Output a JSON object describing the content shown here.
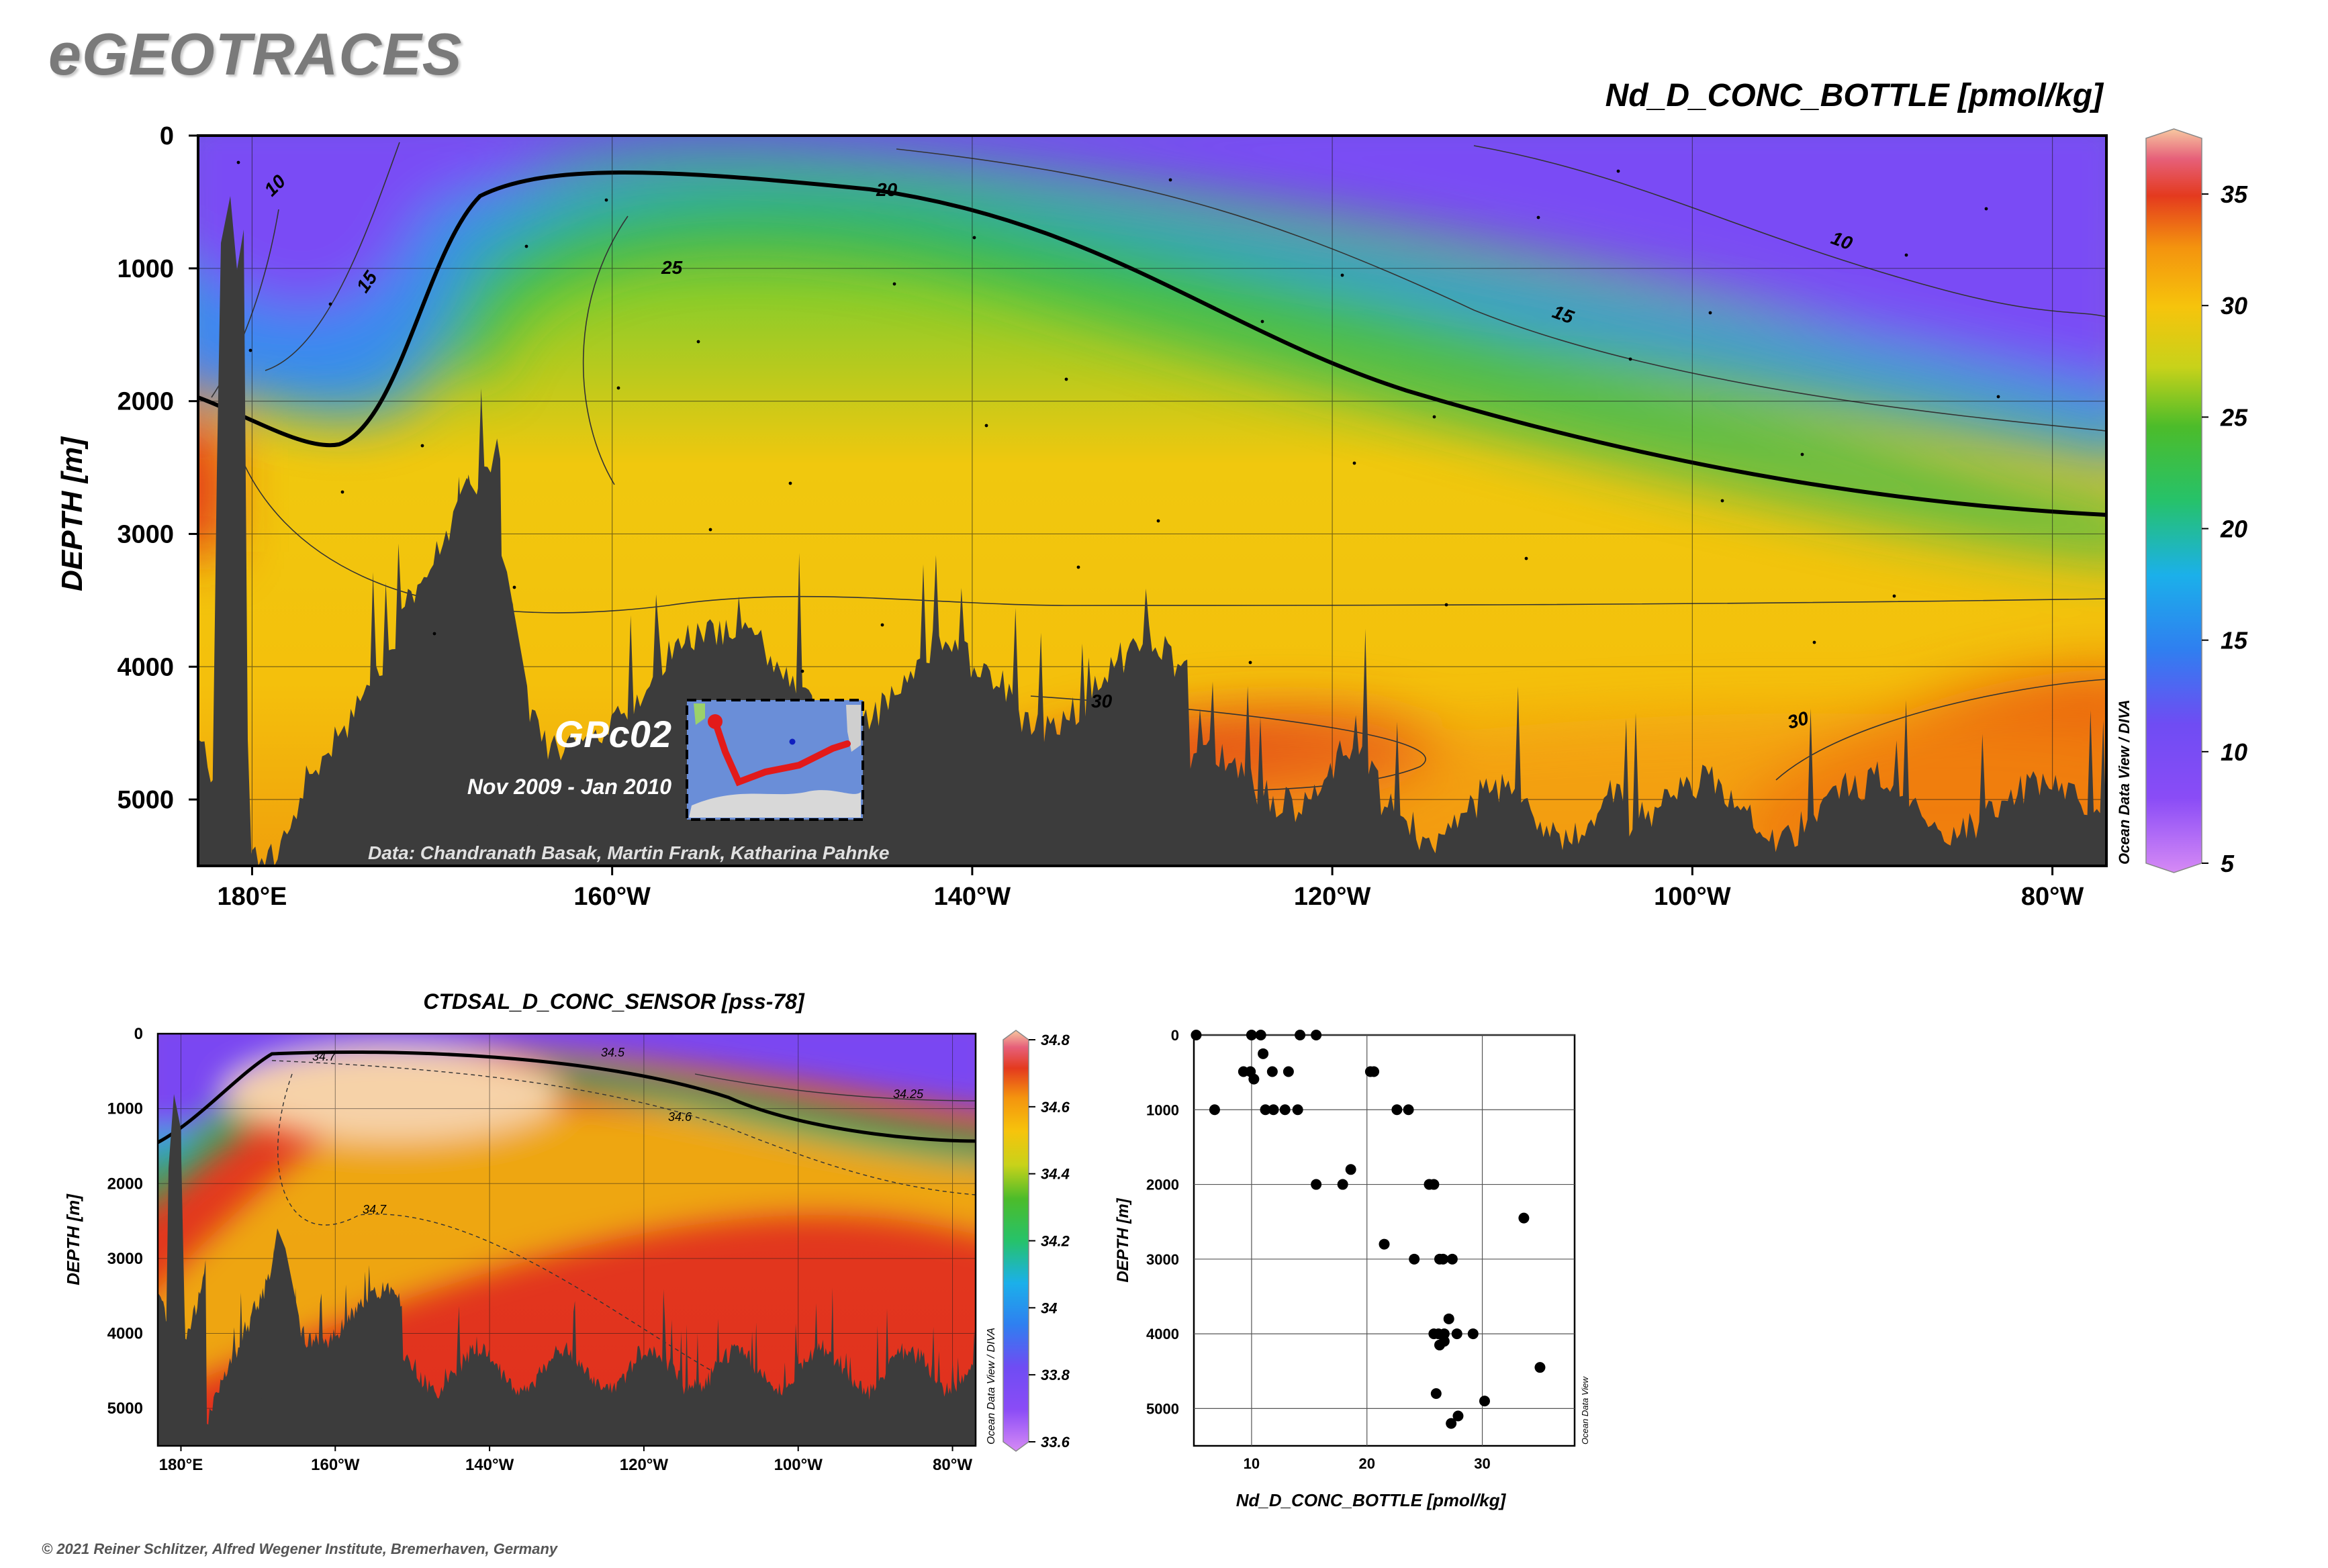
{
  "brand": "eGEOTRACES",
  "copyright": "© 2021 Reiner Schlitzer, Alfred Wegener Institute, Bremerhaven, Germany",
  "colors": {
    "ocean_floor": "#3c3c3c",
    "frame": "#000000",
    "dot": "#000000"
  },
  "chart_data": [
    {
      "type": "heatmap",
      "title": "Nd_D_CONC_BOTTLE [pmol/kg]",
      "ylabel": "DEPTH [m]",
      "x_ticks": [
        "180°E",
        "160°W",
        "140°W",
        "120°W",
        "100°W",
        "80°W"
      ],
      "x_tick_values": [
        180,
        200,
        220,
        240,
        260,
        280
      ],
      "xlim": [
        177,
        283
      ],
      "y_ticks": [
        0,
        1000,
        2000,
        3000,
        4000,
        5000
      ],
      "ylim": [
        5500,
        0
      ],
      "colorbar": {
        "ticks": [
          5,
          10,
          15,
          20,
          25,
          30,
          35
        ],
        "range": [
          5,
          37.5
        ]
      },
      "contour_labels": [
        "10",
        "15",
        "20",
        "25",
        "30",
        "10",
        "15",
        "30"
      ],
      "cruise_label": "GPc02",
      "dates_label": "Nov 2009 - Jan 2010",
      "credits": "Data: Chandranath Basak, Martin Frank, Katharina Pahnke",
      "watermark": "Ocean Data View / DIVA"
    },
    {
      "type": "heatmap",
      "title": "CTDSAL_D_CONC_SENSOR [pss-78]",
      "ylabel": "DEPTH [m]",
      "x_ticks": [
        "180°E",
        "160°W",
        "140°W",
        "120°W",
        "100°W",
        "80°W"
      ],
      "x_tick_values": [
        180,
        200,
        220,
        240,
        260,
        280
      ],
      "xlim": [
        177,
        283
      ],
      "y_ticks": [
        0,
        1000,
        2000,
        3000,
        4000,
        5000
      ],
      "ylim": [
        5500,
        0
      ],
      "colorbar": {
        "ticks": [
          33.6,
          33.8,
          34,
          34.2,
          34.4,
          34.6,
          34.8
        ],
        "range": [
          33.6,
          34.8
        ]
      },
      "contour_labels": [
        "34.7",
        "34.5",
        "34.25",
        "34.6",
        "34.7"
      ],
      "watermark": "Ocean Data View / DIVA"
    },
    {
      "type": "scatter",
      "xlabel": "Nd_D_CONC_BOTTLE [pmol/kg]",
      "ylabel": "DEPTH [m]",
      "x_ticks": [
        10,
        20,
        30
      ],
      "xlim": [
        5,
        38
      ],
      "y_ticks": [
        0,
        1000,
        2000,
        3000,
        4000,
        5000
      ],
      "ylim": [
        5500,
        0
      ],
      "watermark": "Ocean Data View",
      "points": [
        {
          "x": 5.2,
          "y": 0
        },
        {
          "x": 10.0,
          "y": 0
        },
        {
          "x": 10.8,
          "y": 0
        },
        {
          "x": 14.2,
          "y": 0
        },
        {
          "x": 15.6,
          "y": 0
        },
        {
          "x": 11.0,
          "y": 250
        },
        {
          "x": 9.3,
          "y": 490
        },
        {
          "x": 9.9,
          "y": 490
        },
        {
          "x": 11.8,
          "y": 490
        },
        {
          "x": 13.2,
          "y": 490
        },
        {
          "x": 20.3,
          "y": 490
        },
        {
          "x": 20.6,
          "y": 490
        },
        {
          "x": 10.2,
          "y": 590
        },
        {
          "x": 6.8,
          "y": 1000
        },
        {
          "x": 11.2,
          "y": 1000
        },
        {
          "x": 11.9,
          "y": 1000
        },
        {
          "x": 12.9,
          "y": 1000
        },
        {
          "x": 14.0,
          "y": 1000
        },
        {
          "x": 22.6,
          "y": 1000
        },
        {
          "x": 23.6,
          "y": 1000
        },
        {
          "x": 18.6,
          "y": 1800
        },
        {
          "x": 15.6,
          "y": 2000
        },
        {
          "x": 17.9,
          "y": 2000
        },
        {
          "x": 25.4,
          "y": 2000
        },
        {
          "x": 25.8,
          "y": 2000
        },
        {
          "x": 33.6,
          "y": 2450
        },
        {
          "x": 21.5,
          "y": 2800
        },
        {
          "x": 24.1,
          "y": 3000
        },
        {
          "x": 26.3,
          "y": 3000
        },
        {
          "x": 26.6,
          "y": 3000
        },
        {
          "x": 27.4,
          "y": 3000
        },
        {
          "x": 27.1,
          "y": 3800
        },
        {
          "x": 25.8,
          "y": 4000
        },
        {
          "x": 26.2,
          "y": 4000
        },
        {
          "x": 26.7,
          "y": 4000
        },
        {
          "x": 27.8,
          "y": 4000
        },
        {
          "x": 29.2,
          "y": 4000
        },
        {
          "x": 26.7,
          "y": 4100
        },
        {
          "x": 26.3,
          "y": 4150
        },
        {
          "x": 35.0,
          "y": 4450
        },
        {
          "x": 26.0,
          "y": 4800
        },
        {
          "x": 30.2,
          "y": 4900
        },
        {
          "x": 27.9,
          "y": 5100
        },
        {
          "x": 27.3,
          "y": 5200
        }
      ]
    }
  ]
}
